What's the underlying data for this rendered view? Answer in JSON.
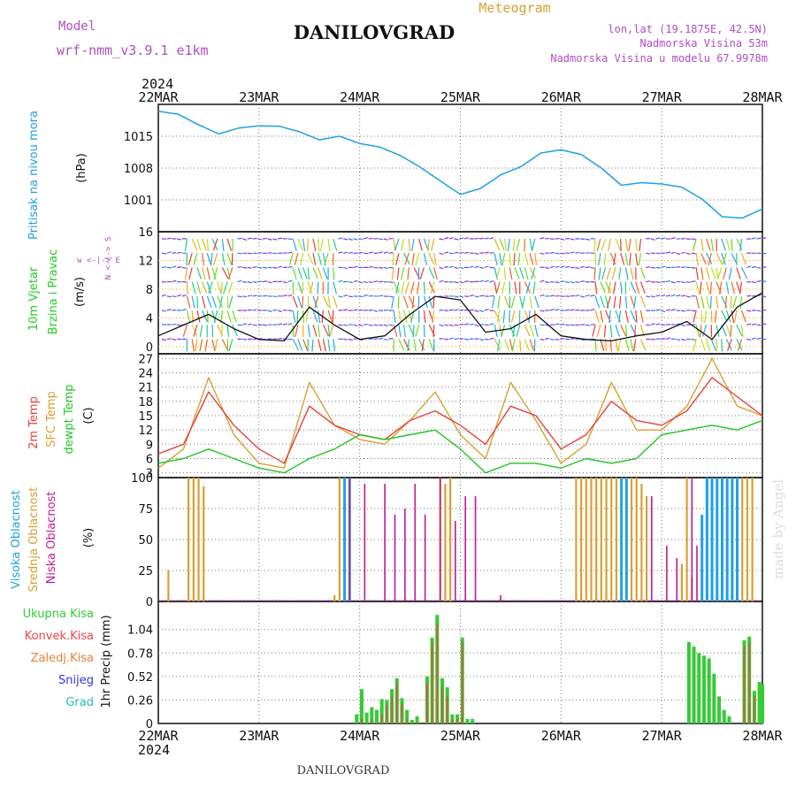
{
  "header": {
    "model_label": "Model",
    "model_name": "wrf-nmm_v3.9.1 e1km",
    "station": "DANILOVGRAD",
    "meteogram": "Meteogram",
    "lonlat": "lon,lat (19.1875E, 42.5N)",
    "altitude": "Nadmorska Visina 53m",
    "model_altitude": "Nadmorska Visina u modelu 67.9978m",
    "year_top": "2024",
    "year_bottom": "2024",
    "footer_station": "DANILOVGRAD",
    "credit": "made by Angel"
  },
  "colors": {
    "pressure": "#1fa0e6",
    "wind_label": "#22cc22",
    "temp2m": "#e8403a",
    "sfc": "#d9a030",
    "dewpt": "#22c422",
    "high_cloud": "#1fa0e6",
    "mid_cloud": "#d9a030",
    "low_cloud": "#c0189a",
    "total_precip": "#33cc33",
    "convective": "#ee4444",
    "frozen": "#f08030",
    "snow": "#3333dd",
    "hail": "#22b8c8",
    "grid": "#ff8c00",
    "wind_arrows_calm": "#9933cc"
  },
  "chart_data": [
    {
      "type": "line",
      "panel": "pressure",
      "ylabel_title": "Pritisak na nivou mora",
      "yunit": "(hPa)",
      "x_ticks": [
        "22MAR",
        "23MAR",
        "24MAR",
        "25MAR",
        "26MAR",
        "27MAR",
        "28MAR"
      ],
      "ylim": [
        994,
        1022
      ],
      "yticks": [
        "1015",
        "1008",
        "1001"
      ],
      "x": [
        0,
        0.2,
        0.4,
        0.6,
        0.8,
        1.0,
        1.2,
        1.4,
        1.6,
        1.8,
        2.0,
        2.2,
        2.4,
        2.6,
        2.8,
        3.0,
        3.2,
        3.4,
        3.6,
        3.8,
        4.0,
        4.2,
        4.4,
        4.6,
        4.8,
        5.0,
        5.2,
        5.4,
        5.6,
        5.8,
        6.0
      ],
      "series": [
        {
          "values": [
            1020.5,
            1019.8,
            1017.5,
            1015.5,
            1016.8,
            1017.3,
            1017.2,
            1016,
            1014.2,
            1015,
            1013.4,
            1012.6,
            1010.8,
            1008.2,
            1005.2,
            1002.2,
            1003.5,
            1006.5,
            1008.3,
            1011.3,
            1012,
            1011,
            1008,
            1004.2,
            1004.8,
            1004.5,
            1003.8,
            1001.2,
            997.3,
            997,
            999
          ]
        }
      ]
    },
    {
      "type": "line",
      "panel": "wind",
      "ylabel_title": "10m Vjetar",
      "ylabel_sub": "Brzina i Pravac",
      "yunit": "(m/s)",
      "compass": "w <-|-> E",
      "compass_v": "N <-|-> S",
      "ylim": [
        -1,
        16
      ],
      "yticks": [
        "16",
        "12",
        "8",
        "4",
        "0"
      ],
      "x": [
        0,
        0.25,
        0.5,
        0.75,
        1.0,
        1.25,
        1.5,
        1.75,
        2.0,
        2.25,
        2.5,
        2.75,
        3.0,
        3.25,
        3.5,
        3.75,
        4.0,
        4.25,
        4.5,
        4.75,
        5.0,
        5.25,
        5.5,
        5.75,
        6.0
      ],
      "series": [
        {
          "values": [
            1.5,
            3,
            4.5,
            2.5,
            1,
            0.8,
            5.5,
            3,
            1,
            1.5,
            4.5,
            7,
            6.5,
            2,
            2.5,
            4.5,
            1.5,
            1,
            0.8,
            1.5,
            2,
            3.5,
            1,
            5.5,
            7.5
          ]
        }
      ]
    },
    {
      "type": "line",
      "panel": "temperature",
      "ylabel_t2": "2m Temp",
      "ylabel_sfc": "SFC Temp",
      "ylabel_dew": "dewpt Temp",
      "yunit": "(C)",
      "ylim": [
        2,
        28
      ],
      "yticks": [
        "27",
        "24",
        "21",
        "18",
        "15",
        "12",
        "9",
        "6",
        "3"
      ],
      "x": [
        0,
        0.25,
        0.5,
        0.75,
        1.0,
        1.25,
        1.5,
        1.75,
        2.0,
        2.25,
        2.5,
        2.75,
        3.0,
        3.25,
        3.5,
        3.75,
        4.0,
        4.25,
        4.5,
        4.75,
        5.0,
        5.25,
        5.5,
        5.75,
        6.0
      ],
      "series": [
        {
          "values": [
            7,
            9,
            20,
            13,
            8,
            5,
            17,
            13,
            11,
            10,
            14,
            16,
            13,
            9,
            17,
            15,
            8,
            11,
            18,
            14,
            13,
            16,
            23,
            19,
            15
          ]
        },
        {
          "values": [
            4,
            8,
            23,
            11,
            5,
            4,
            22,
            13,
            10,
            9,
            14,
            20,
            11,
            6,
            22,
            14,
            5,
            9,
            22,
            12,
            12,
            17,
            27,
            17,
            15
          ]
        },
        {
          "values": [
            5,
            6,
            8,
            6,
            4,
            3,
            6,
            8,
            11,
            10,
            11,
            12,
            8,
            3,
            5,
            5,
            4,
            6,
            5,
            6,
            11,
            12,
            13,
            12,
            14
          ]
        }
      ]
    },
    {
      "type": "bar",
      "panel": "cloud",
      "ylabel_high": "Visoka Oblacnost",
      "ylabel_mid": "Srednja Oblacnost",
      "ylabel_low": "Niska Oblacnost",
      "yunit": "(%)",
      "ylim": [
        0,
        100
      ],
      "yticks": [
        "100",
        "75",
        "50",
        "25",
        "0"
      ],
      "series": [
        {
          "x": [
            1.85,
            1.9,
            4.6,
            4.65,
            5.4,
            5.45,
            5.5,
            5.55,
            5.6,
            5.65,
            5.7,
            5.75
          ],
          "values": [
            100,
            100,
            100,
            100,
            70,
            100,
            100,
            100,
            100,
            100,
            100,
            100
          ]
        },
        {
          "x": [
            0.1,
            0.3,
            0.35,
            0.4,
            0.45,
            1.75,
            1.8,
            1.85,
            2.8,
            2.85,
            2.9,
            4.15,
            4.2,
            4.25,
            4.3,
            4.35,
            4.4,
            4.45,
            4.5,
            4.55,
            4.6,
            4.65,
            4.7,
            4.75,
            4.8,
            4.85,
            5.2,
            5.25,
            5.3,
            5.8,
            5.85,
            5.9
          ],
          "values": [
            25,
            100,
            100,
            100,
            93,
            5,
            100,
            100,
            100,
            95,
            100,
            100,
            100,
            100,
            100,
            100,
            100,
            100,
            100,
            100,
            100,
            100,
            100,
            100,
            95,
            85,
            30,
            100,
            20,
            100,
            100,
            100
          ]
        },
        {
          "x": [
            1.9,
            2.05,
            2.25,
            2.35,
            2.45,
            2.55,
            2.65,
            2.8,
            2.95,
            3.05,
            3.15,
            3.4,
            4.9,
            5.05,
            5.15,
            5.3,
            5.35
          ],
          "values": [
            100,
            95,
            95,
            70,
            75,
            95,
            70,
            100,
            65,
            85,
            85,
            5,
            85,
            45,
            35,
            100,
            45
          ]
        }
      ]
    },
    {
      "type": "bar",
      "panel": "precip",
      "leg_total": "Ukupna Kisa",
      "leg_conv": "Konvek.Kisa",
      "leg_frozen": "Zaledj.Kisa",
      "leg_snow": "Snijeg",
      "leg_hail": "Grad",
      "ylabel": "1hr Precip (mm)",
      "ylim": [
        0,
        1.35
      ],
      "yticks": [
        "1.04",
        "0.78",
        "0.52",
        "0.26",
        "0"
      ],
      "x": [
        1.97,
        2.02,
        2.07,
        2.12,
        2.17,
        2.22,
        2.27,
        2.32,
        2.37,
        2.42,
        2.47,
        2.52,
        2.57,
        2.67,
        2.72,
        2.77,
        2.82,
        2.87,
        2.92,
        2.97,
        3.02,
        3.07,
        3.12,
        5.27,
        5.32,
        5.37,
        5.42,
        5.47,
        5.52,
        5.57,
        5.62,
        5.67,
        5.82,
        5.87,
        5.92,
        5.97,
        6.0
      ],
      "series": [
        {
          "values": [
            0.1,
            0.38,
            0.12,
            0.18,
            0.15,
            0.27,
            0.26,
            0.38,
            0.5,
            0.28,
            0.15,
            0.04,
            0.08,
            0.52,
            0.95,
            1.2,
            0.5,
            0.4,
            0.1,
            0.1,
            0.95,
            0.05,
            0.05,
            0.9,
            0.85,
            0.78,
            0.75,
            0.72,
            0.55,
            0.3,
            0.15,
            0.08,
            0.92,
            0.96,
            0.36,
            0.46,
            0.43
          ]
        },
        {
          "values": [
            0,
            0.05,
            0,
            0.05,
            0,
            0.1,
            0.2,
            0.3,
            0.45,
            0.22,
            0.05,
            0,
            0.02,
            0.45,
            0.9,
            1.1,
            0.4,
            0.3,
            0.05,
            0.05,
            0.9,
            0,
            0,
            0,
            0,
            0,
            0,
            0,
            0,
            0,
            0,
            0,
            0.85,
            0.9,
            0.3,
            0,
            0
          ]
        }
      ]
    }
  ]
}
